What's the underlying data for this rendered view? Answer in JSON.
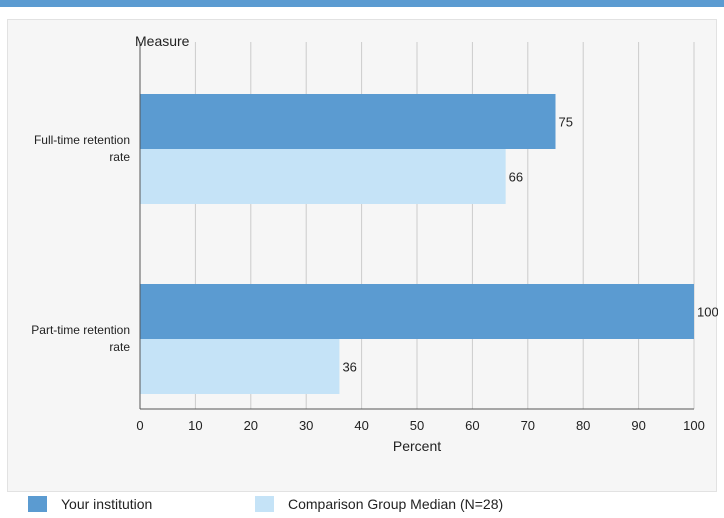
{
  "colors": {
    "top_rule": "#5b9bd1",
    "primary": "#5b9bd1",
    "comparison": "#c5e3f7",
    "grid": "#cccccc",
    "axis": "#555555"
  },
  "chart_data": {
    "type": "bar",
    "orientation": "horizontal",
    "title": "",
    "category_axis_label": "Measure",
    "xlabel": "Percent",
    "xlim": [
      0,
      100
    ],
    "xticks": [
      0,
      10,
      20,
      30,
      40,
      50,
      60,
      70,
      80,
      90,
      100
    ],
    "grid": true,
    "legend_position": "bottom",
    "categories": [
      [
        "Full-time retention",
        "rate"
      ],
      [
        "Part-time retention",
        "rate"
      ]
    ],
    "series": [
      {
        "name": "Your institution",
        "values": [
          75,
          100
        ],
        "color": "#5b9bd1"
      },
      {
        "name": "Comparison Group Median (N=28)",
        "values": [
          66,
          36
        ],
        "color": "#c5e3f7"
      }
    ]
  }
}
